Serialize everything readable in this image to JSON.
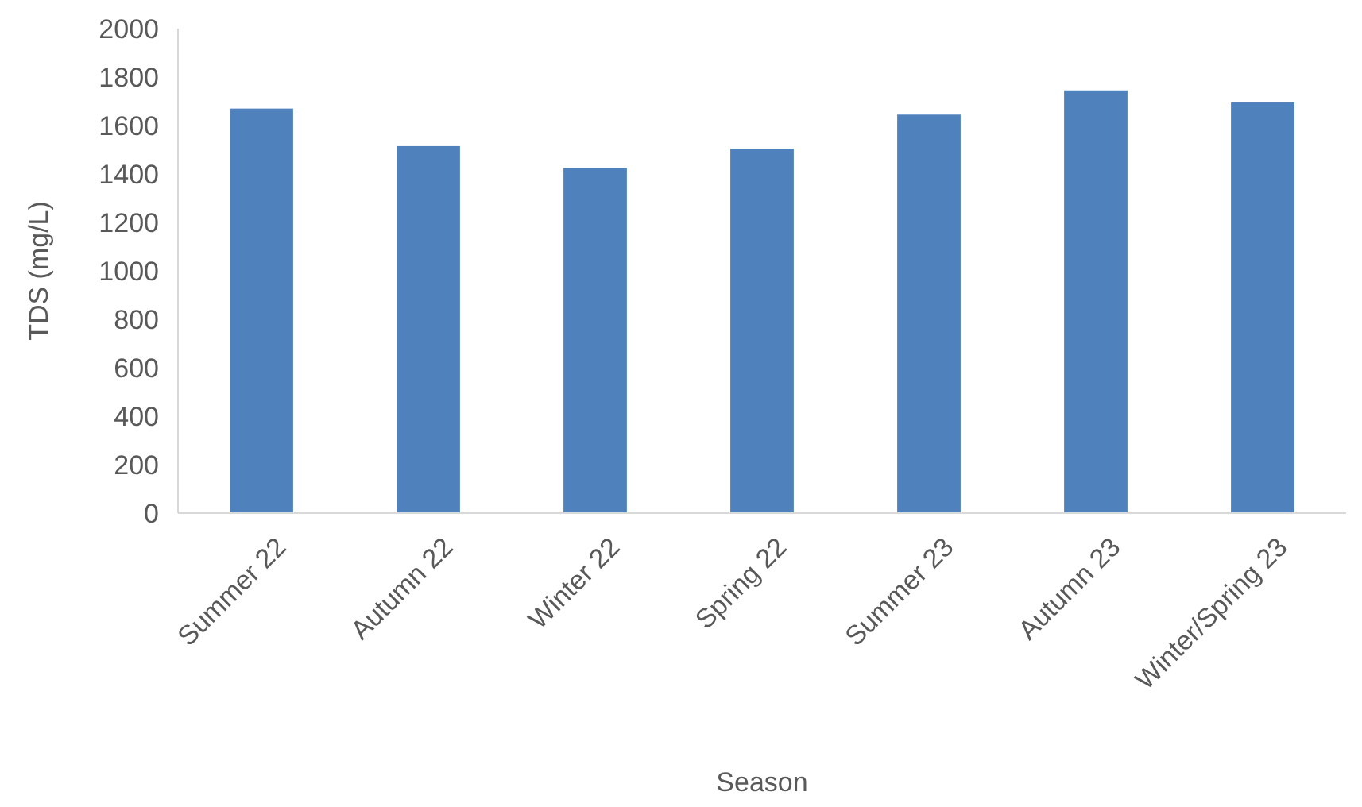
{
  "chart_data": {
    "type": "bar",
    "xlabel": "Season",
    "ylabel": "TDS (mg/L)",
    "categories": [
      "Summer 22",
      "Autumn 22",
      "Winter 22",
      "Spring 22",
      "Summer 23",
      "Autumn 23",
      "Winter/Spring 23"
    ],
    "values": [
      1670,
      1515,
      1425,
      1505,
      1645,
      1745,
      1695
    ],
    "color": "#4f81bd",
    "ylim": [
      0,
      2000
    ],
    "yticks": [
      0,
      200,
      400,
      600,
      800,
      1000,
      1200,
      1400,
      1600,
      1800,
      2000
    ]
  }
}
